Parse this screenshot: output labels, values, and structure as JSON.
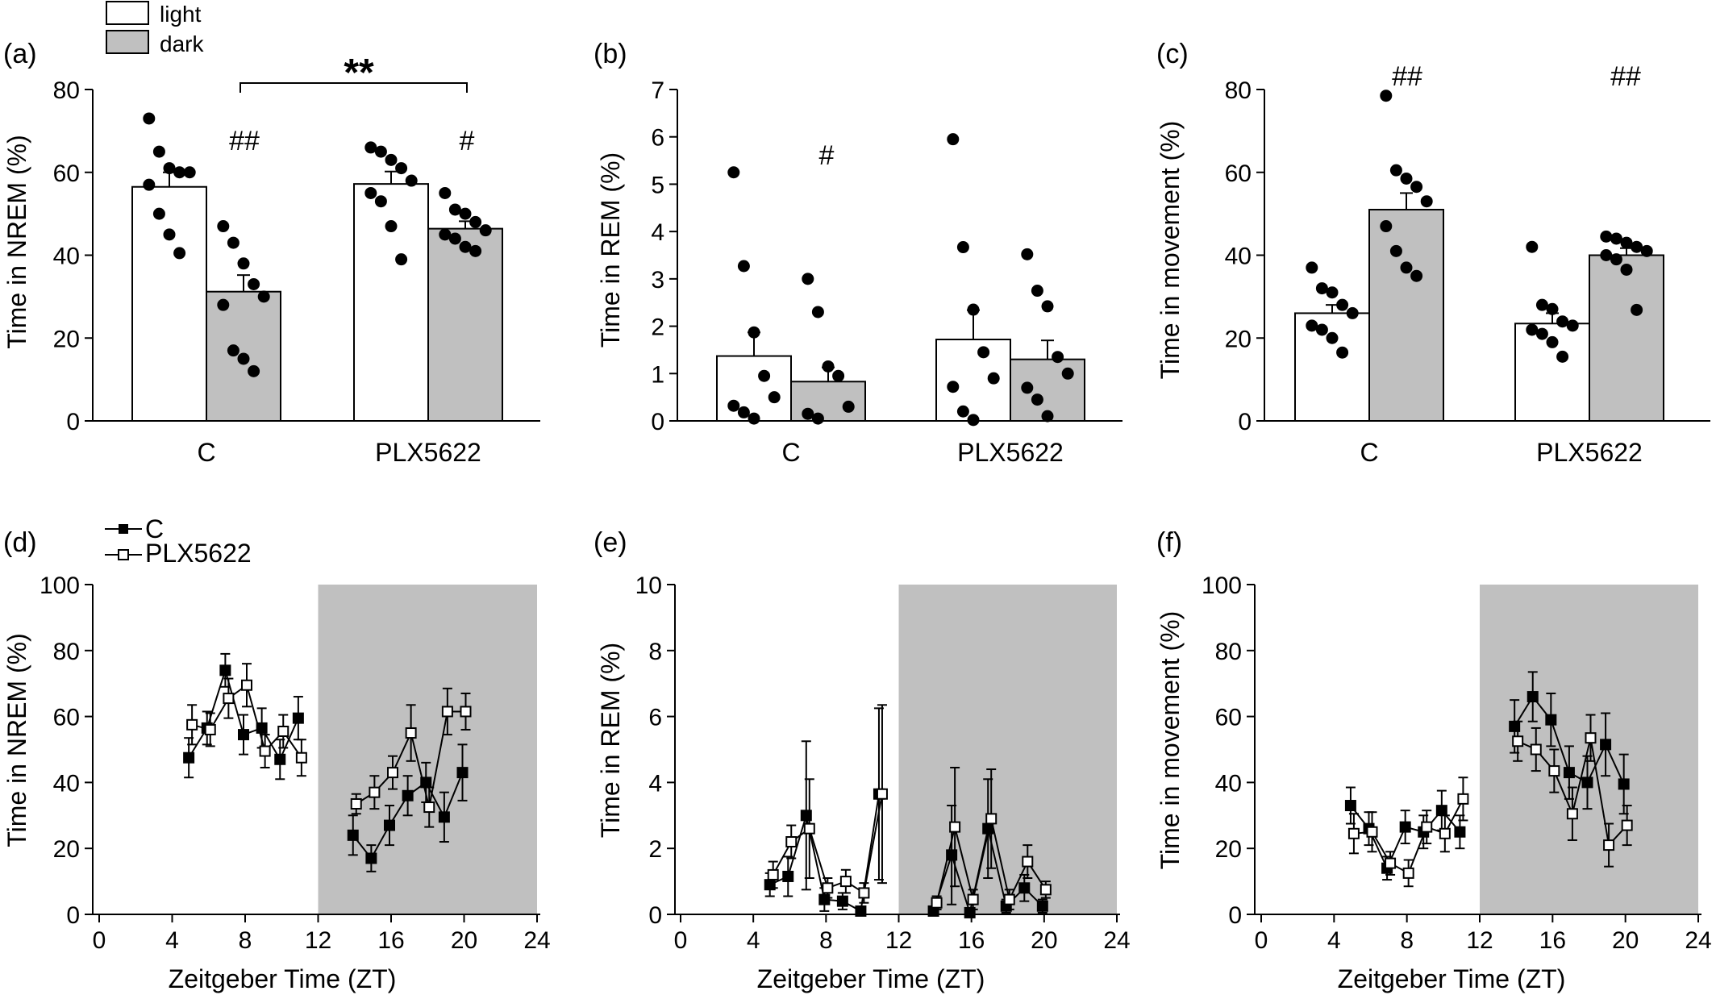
{
  "legend_bar": {
    "light": "light",
    "dark": "dark",
    "light_color": "#ffffff",
    "dark_color": "#c0c0c0"
  },
  "legend_line": {
    "c": "C",
    "plx": "PLX5622"
  },
  "colors": {
    "ink": "#000000",
    "dark_fill": "#c0c0c0",
    "shade": "#c0c0c0"
  },
  "chart_data": [
    {
      "panel": "(a)",
      "type": "bar",
      "ylabel": "Time in NREM (%)",
      "ylim": [
        0,
        80
      ],
      "yticks": [
        0,
        20,
        40,
        60,
        80
      ],
      "categories": [
        "C",
        "PLX5622"
      ],
      "series": [
        {
          "name": "light",
          "values": [
            56.5,
            57.2
          ],
          "sem": [
            3.5,
            3.0
          ],
          "points": [
            [
              73,
              65,
              61,
              60,
              60,
              57,
              50,
              45,
              40.5
            ],
            [
              66,
              65,
              63,
              61,
              58,
              55,
              53,
              47,
              39
            ]
          ]
        },
        {
          "name": "dark",
          "values": [
            31.2,
            46.4
          ],
          "sem": [
            4.0,
            1.8
          ],
          "points": [
            [
              47,
              43,
              38,
              33,
              30,
              28,
              17,
              15,
              12
            ],
            [
              55,
              51,
              50,
              48,
              46,
              45,
              44,
              42,
              41
            ]
          ]
        }
      ],
      "annotations": {
        "stars": "**",
        "marks": [
          "##",
          "#"
        ]
      }
    },
    {
      "panel": "(b)",
      "type": "bar",
      "ylabel": "Time in REM (%)",
      "ylim": [
        0,
        7
      ],
      "yticks": [
        0,
        1,
        2,
        3,
        4,
        5,
        6,
        7
      ],
      "categories": [
        "C",
        "PLX5622"
      ],
      "series": [
        {
          "name": "light",
          "values": [
            1.37,
            1.72
          ],
          "sem": [
            0.5,
            0.62
          ],
          "points": [
            [
              5.25,
              3.27,
              1.87,
              0.95,
              0.5,
              0.32,
              0.18,
              0.05
            ],
            [
              5.95,
              3.67,
              2.35,
              1.45,
              0.9,
              0.72,
              0.2,
              0.02
            ]
          ]
        },
        {
          "name": "dark",
          "values": [
            0.83,
            1.3
          ],
          "sem": [
            0.3,
            0.4
          ],
          "points": [
            [
              3.0,
              2.3,
              1.15,
              0.95,
              0.3,
              0.15,
              0.05
            ],
            [
              3.52,
              2.75,
              2.42,
              1.35,
              1.0,
              0.7,
              0.45,
              0.1
            ]
          ]
        }
      ],
      "annotations": {
        "marks": [
          "#"
        ]
      }
    },
    {
      "panel": "(c)",
      "type": "bar",
      "ylabel": "Time in movement (%)",
      "ylim": [
        0,
        80
      ],
      "yticks": [
        0,
        20,
        40,
        60,
        80
      ],
      "categories": [
        "C",
        "PLX5622"
      ],
      "series": [
        {
          "name": "light",
          "values": [
            26.0,
            23.5
          ],
          "sem": [
            2.0,
            2.5
          ],
          "points": [
            [
              37,
              32,
              31,
              28,
              26,
              23,
              22,
              20,
              16.5
            ],
            [
              42,
              28,
              27,
              24,
              23,
              22,
              21,
              19,
              15.5
            ]
          ]
        },
        {
          "name": "dark",
          "values": [
            51.0,
            40.0
          ],
          "sem": [
            4.0,
            1.7
          ],
          "points": [
            [
              78.5,
              60.5,
              58.5,
              56.5,
              53,
              47,
              41,
              37,
              35
            ],
            [
              44.5,
              44,
              43,
              42,
              41,
              40,
              39,
              36.5,
              26.8
            ]
          ]
        }
      ],
      "annotations": {
        "marks": [
          "##",
          "##"
        ]
      }
    },
    {
      "panel": "(d)",
      "type": "line",
      "ylabel": "Time in NREM (%)",
      "xlabel": "Zeitgeber Time (ZT)",
      "xlim": [
        0,
        24
      ],
      "ylim": [
        0,
        100
      ],
      "xticks": [
        0,
        4,
        8,
        12,
        16,
        20,
        24
      ],
      "yticks": [
        0,
        20,
        40,
        60,
        80,
        100
      ],
      "dark_phase": [
        12,
        24
      ],
      "series": [
        {
          "name": "C",
          "segments": [
            {
              "x": [
                5,
                6,
                7,
                8,
                9,
                10,
                11
              ],
              "y": [
                47.5,
                56.5,
                74,
                54.5,
                56.5,
                47,
                59.5
              ],
              "err": [
                6,
                5,
                5,
                6,
                6,
                6,
                6.5
              ]
            },
            {
              "x": [
                14,
                15,
                16,
                17,
                18,
                19,
                20
              ],
              "y": [
                24,
                17,
                27,
                36,
                40,
                29.5,
                43
              ],
              "err": [
                6,
                4,
                6,
                6,
                6,
                7.5,
                8.5
              ]
            }
          ]
        },
        {
          "name": "PLX5622",
          "segments": [
            {
              "x": [
                5,
                6,
                7,
                8,
                9,
                10,
                11
              ],
              "y": [
                57.5,
                56,
                65.5,
                69.5,
                49.5,
                55.5,
                47.5
              ],
              "err": [
                6,
                5,
                6,
                6.5,
                5,
                5,
                5.5
              ]
            },
            {
              "x": [
                14,
                15,
                16,
                17,
                18,
                19,
                20
              ],
              "y": [
                33.5,
                37,
                43,
                55,
                32.5,
                61.5,
                61.5
              ],
              "err": [
                3,
                5,
                5,
                8.5,
                6,
                7,
                5.5
              ]
            }
          ]
        }
      ]
    },
    {
      "panel": "(e)",
      "type": "line",
      "ylabel": "Time in REM (%)",
      "xlabel": "Zeitgeber Time (ZT)",
      "xlim": [
        0,
        24
      ],
      "ylim": [
        0,
        10
      ],
      "xticks": [
        0,
        4,
        8,
        12,
        16,
        20,
        24
      ],
      "yticks": [
        0,
        2,
        4,
        6,
        8,
        10
      ],
      "dark_phase": [
        12,
        24
      ],
      "series": [
        {
          "name": "C",
          "segments": [
            {
              "x": [
                5,
                6,
                7,
                8,
                9,
                10,
                11
              ],
              "y": [
                0.9,
                1.15,
                3.0,
                0.45,
                0.4,
                0.1,
                3.65
              ],
              "err": [
                0.35,
                0.6,
                2.25,
                0.35,
                0.25,
                0.1,
                2.6
              ]
            },
            {
              "x": [
                14,
                15,
                16,
                17,
                18,
                19,
                20
              ],
              "y": [
                0.1,
                1.8,
                0.05,
                2.6,
                0.25,
                0.8,
                0.25
              ],
              "err": [
                0.1,
                1.5,
                0.05,
                1.5,
                0.2,
                0.4,
                0.2
              ]
            }
          ]
        },
        {
          "name": "PLX5622",
          "segments": [
            {
              "x": [
                5,
                6,
                7,
                8,
                9,
                10,
                11
              ],
              "y": [
                1.2,
                2.2,
                2.6,
                0.8,
                1.0,
                0.65,
                3.65
              ],
              "err": [
                0.4,
                0.5,
                1.5,
                0.3,
                0.35,
                0.3,
                2.7
              ]
            },
            {
              "x": [
                14,
                15,
                16,
                17,
                18,
                19,
                20
              ],
              "y": [
                0.35,
                2.65,
                0.45,
                2.9,
                0.45,
                1.6,
                0.75
              ],
              "err": [
                0.2,
                1.8,
                0.3,
                1.5,
                0.3,
                0.5,
                0.25
              ]
            }
          ]
        }
      ]
    },
    {
      "panel": "(f)",
      "type": "line",
      "ylabel": "Time in movement (%)",
      "xlabel": "Zeitgeber Time (ZT)",
      "xlim": [
        0,
        24
      ],
      "ylim": [
        0,
        100
      ],
      "xticks": [
        0,
        4,
        8,
        12,
        16,
        20,
        24
      ],
      "yticks": [
        0,
        20,
        40,
        60,
        80,
        100
      ],
      "dark_phase": [
        12,
        24
      ],
      "series": [
        {
          "name": "C",
          "segments": [
            {
              "x": [
                5,
                6,
                7,
                8,
                9,
                10,
                11
              ],
              "y": [
                33,
                26,
                14,
                26.5,
                25,
                31.5,
                25
              ],
              "err": [
                5.5,
                5,
                3.5,
                5,
                5,
                6,
                5
              ]
            },
            {
              "x": [
                14,
                15,
                16,
                17,
                18,
                19,
                20
              ],
              "y": [
                57,
                66,
                59,
                43,
                40,
                51.5,
                39.5
              ],
              "err": [
                8,
                7.5,
                8,
                8,
                8,
                9.5,
                9
              ]
            }
          ]
        },
        {
          "name": "PLX5622",
          "segments": [
            {
              "x": [
                5,
                6,
                7,
                8,
                9,
                10,
                11
              ],
              "y": [
                24.5,
                25,
                15.5,
                12.5,
                26.5,
                24.5,
                35
              ],
              "err": [
                6,
                6,
                3.5,
                4,
                5,
                5.5,
                6.5
              ]
            },
            {
              "x": [
                14,
                15,
                16,
                17,
                18,
                19,
                20
              ],
              "y": [
                52.5,
                50,
                43.5,
                30.5,
                53.5,
                21,
                27
              ],
              "err": [
                6,
                6.5,
                6.5,
                8,
                7,
                6.5,
                6
              ]
            }
          ]
        }
      ]
    }
  ]
}
